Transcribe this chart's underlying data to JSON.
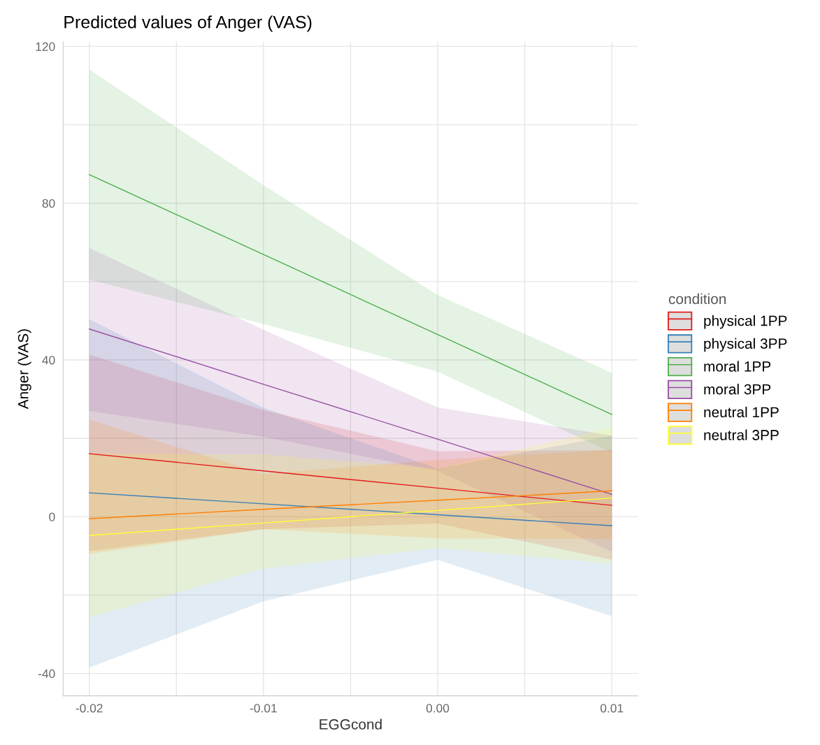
{
  "chart_data": {
    "type": "line",
    "title": "Predicted values of Anger (VAS)",
    "xlabel": "EGGcond",
    "ylabel": "Anger (VAS)",
    "legend_title": "condition",
    "legend": "right",
    "grid": true,
    "x": [
      -0.02,
      -0.01,
      0.0,
      0.01
    ],
    "series": [
      {
        "name": "physical 1PP",
        "color": "#e41a1c",
        "values": [
          16.1,
          11.7,
          7.3,
          2.9
        ],
        "lower": [
          -8.8,
          -3.2,
          -1.7,
          -11
        ],
        "upper": [
          41.4,
          27.2,
          16.7,
          17
        ]
      },
      {
        "name": "physical 3PP",
        "color": "#377eb8",
        "values": [
          6.1,
          3.3,
          0.5,
          -2.3
        ],
        "lower": [
          -38.5,
          -21.6,
          -11,
          -25.4
        ],
        "upper": [
          50.4,
          27.8,
          12.3,
          20.7
        ]
      },
      {
        "name": "moral 1PP",
        "color": "#4daf4a",
        "values": [
          87.3,
          66.9,
          46.5,
          26.1
        ],
        "lower": [
          60.5,
          49.2,
          37,
          16.4
        ],
        "upper": [
          114.1,
          84.6,
          56.6,
          36.7
        ]
      },
      {
        "name": "moral 3PP",
        "color": "#984ea3",
        "values": [
          47.9,
          33.8,
          19.8,
          5.7
        ],
        "lower": [
          27,
          20.4,
          11.7,
          -9
        ],
        "upper": [
          68.6,
          47.7,
          27.9,
          20.7
        ]
      },
      {
        "name": "neutral 1PP",
        "color": "#ff7f00",
        "values": [
          -0.5,
          1.9,
          4.2,
          6.6
        ],
        "lower": [
          -9.5,
          -3.2,
          -5.5,
          -5.7
        ],
        "upper": [
          24.8,
          10.9,
          14.5,
          17
        ]
      },
      {
        "name": "neutral 3PP",
        "color": "#ffff33",
        "values": [
          -4.8,
          -1.6,
          1.6,
          4.8
        ],
        "lower": [
          -25.7,
          -13.2,
          -8,
          -12
        ],
        "upper": [
          16.1,
          15.9,
          12.3,
          22.8
        ]
      }
    ],
    "xlim": [
      -0.0215,
      0.0115
    ],
    "ylim": [
      -45.7,
      121.2
    ],
    "xticks": [
      {
        "value": -0.02,
        "label": "-0.02"
      },
      {
        "value": -0.015,
        "label": null
      },
      {
        "value": -0.01,
        "label": "-0.01"
      },
      {
        "value": -0.005,
        "label": null
      },
      {
        "value": 0.0,
        "label": "0.00"
      },
      {
        "value": 0.005,
        "label": null
      },
      {
        "value": 0.01,
        "label": "0.01"
      }
    ],
    "yticks": [
      -40,
      {
        "value": -20,
        "label": null
      },
      0,
      {
        "value": 20,
        "label": null
      },
      40,
      {
        "value": 60,
        "label": null
      },
      80,
      {
        "value": 100,
        "label": null
      },
      120
    ]
  }
}
